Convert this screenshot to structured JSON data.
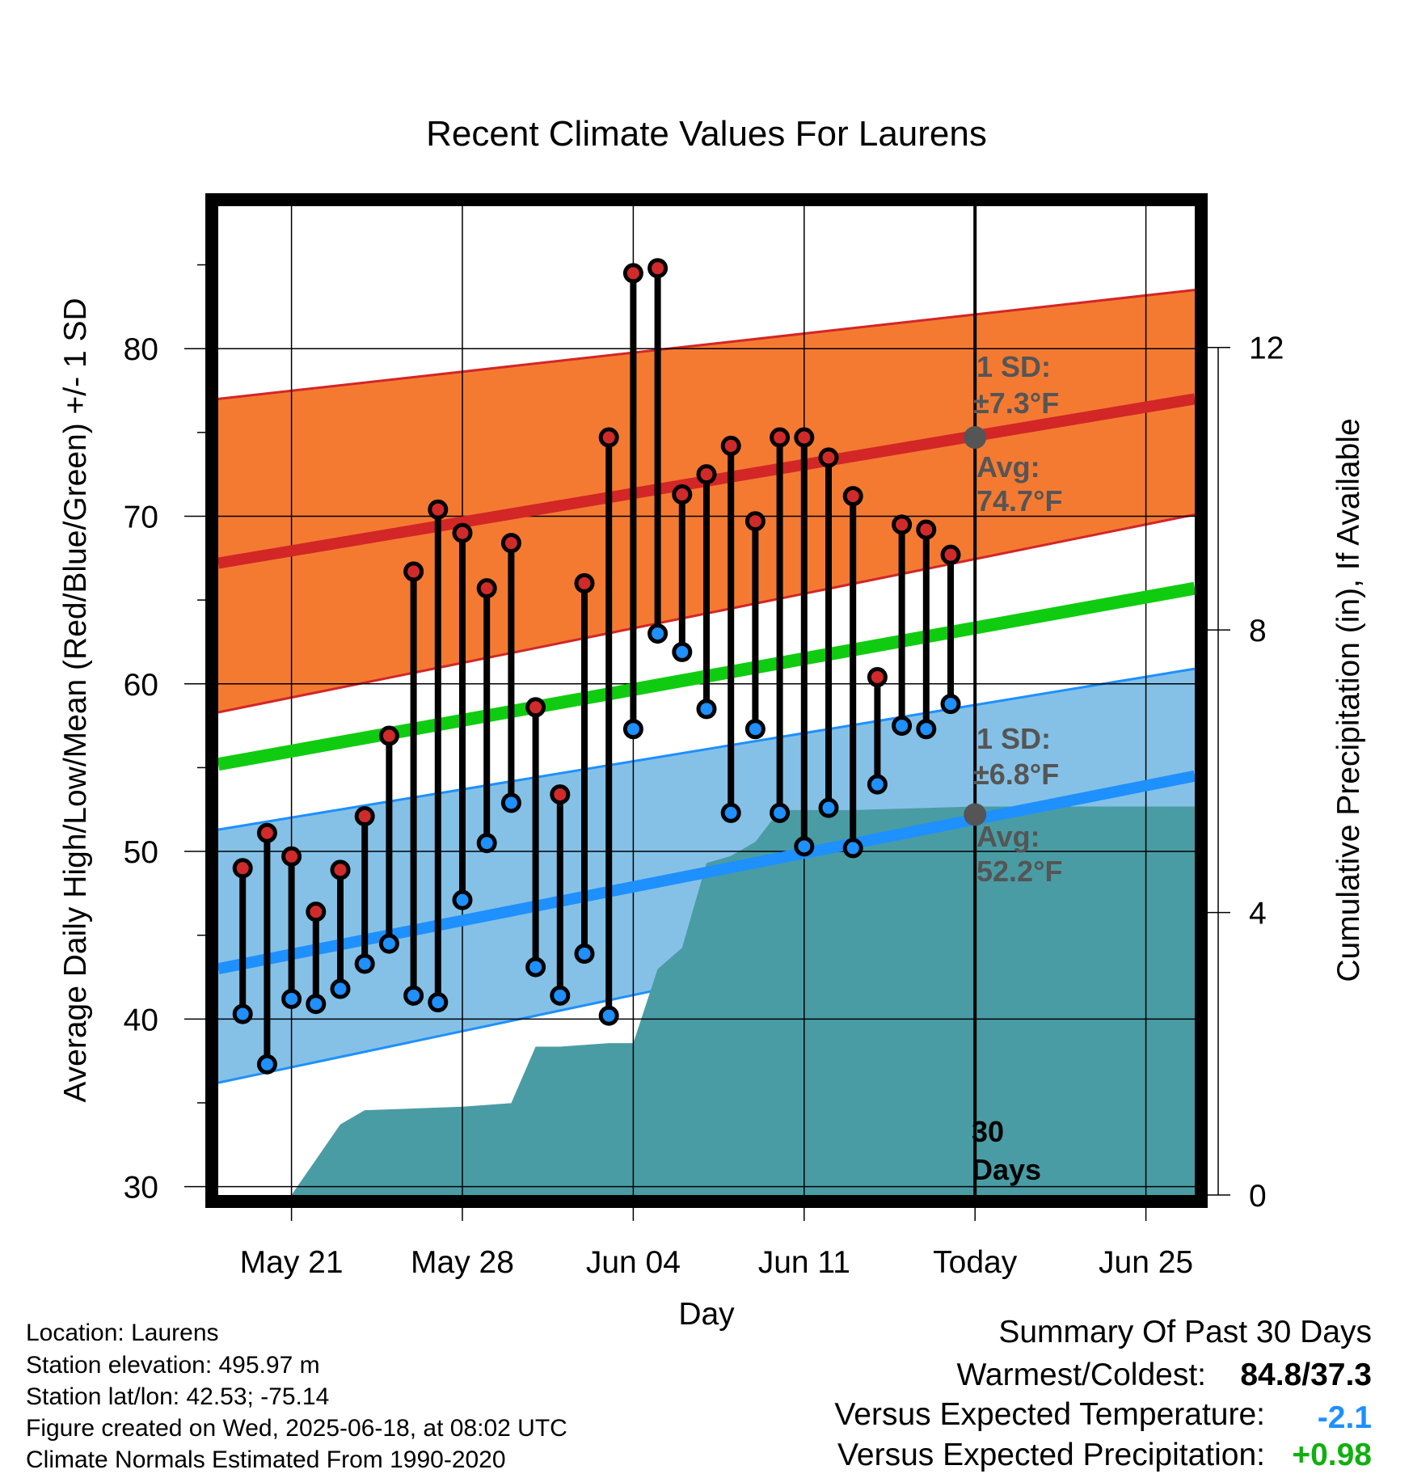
{
  "chart_data": {
    "type": "line",
    "title": "Recent Climate Values For Laurens",
    "xlabel": "Day",
    "ylabel": "Average Daily High/Low/Mean (Red/Blue/Green) +/- 1 SD",
    "y2label": "Cumulative Precipitation (in), If Available",
    "ylim": [
      29.5,
      88.5
    ],
    "y2lim": [
      0,
      14
    ],
    "x_range": [
      "2025-05-18",
      "2025-06-27"
    ],
    "x_ticks": [
      {
        "date": "2025-05-21",
        "label": "May 21"
      },
      {
        "date": "2025-05-28",
        "label": "May 28"
      },
      {
        "date": "2025-06-04",
        "label": "Jun 04"
      },
      {
        "date": "2025-06-11",
        "label": "Jun 11"
      },
      {
        "date": "2025-06-18",
        "label": "Today"
      },
      {
        "date": "2025-06-25",
        "label": "Jun 25"
      }
    ],
    "y_ticks": [
      30,
      40,
      50,
      60,
      70,
      80
    ],
    "y2_ticks": [
      0,
      4,
      8,
      12
    ],
    "today": "2025-06-18",
    "grid": true,
    "observed": {
      "dates": [
        "2025-05-19",
        "2025-05-20",
        "2025-05-21",
        "2025-05-22",
        "2025-05-23",
        "2025-05-24",
        "2025-05-25",
        "2025-05-26",
        "2025-05-27",
        "2025-05-28",
        "2025-05-29",
        "2025-05-30",
        "2025-05-31",
        "2025-06-01",
        "2025-06-02",
        "2025-06-03",
        "2025-06-04",
        "2025-06-05",
        "2025-06-06",
        "2025-06-07",
        "2025-06-08",
        "2025-06-09",
        "2025-06-10",
        "2025-06-11",
        "2025-06-12",
        "2025-06-13",
        "2025-06-14",
        "2025-06-15",
        "2025-06-16",
        "2025-06-17"
      ],
      "highs": [
        49.0,
        51.1,
        49.7,
        46.4,
        48.9,
        52.1,
        56.9,
        66.7,
        70.4,
        69.0,
        65.7,
        68.4,
        58.6,
        53.4,
        66.0,
        74.7,
        84.5,
        84.8,
        71.3,
        72.5,
        74.2,
        69.7,
        74.7,
        74.7,
        73.5,
        71.2,
        60.4,
        69.5,
        69.2,
        67.7
      ],
      "lows": [
        40.3,
        37.3,
        41.2,
        40.9,
        41.8,
        43.3,
        44.5,
        41.4,
        41.0,
        47.1,
        50.5,
        52.9,
        43.1,
        41.4,
        43.9,
        40.2,
        57.3,
        63.0,
        61.9,
        58.5,
        52.3,
        57.3,
        52.3,
        50.3,
        52.6,
        50.2,
        54.0,
        57.5,
        57.3,
        58.8
      ]
    },
    "normals": {
      "dates": [
        "2025-05-18",
        "2025-06-27"
      ],
      "mean_high": [
        67.2,
        77.0
      ],
      "mean_low": [
        43.0,
        54.5
      ],
      "mean": [
        55.2,
        65.7
      ],
      "high_upper": [
        77.0,
        83.5
      ],
      "high_lower": [
        58.3,
        70.1
      ],
      "low_upper": [
        51.3,
        60.9
      ],
      "low_lower": [
        36.2,
        48.5
      ]
    },
    "precip": {
      "dates": [
        "2025-05-18",
        "2025-05-21",
        "2025-05-22",
        "2025-05-23",
        "2025-05-24",
        "2025-05-28",
        "2025-05-30",
        "2025-05-31",
        "2025-06-01",
        "2025-06-03",
        "2025-06-04",
        "2025-06-05",
        "2025-06-06",
        "2025-06-07",
        "2025-06-08",
        "2025-06-09",
        "2025-06-10",
        "2025-06-11",
        "2025-06-12",
        "2025-06-13",
        "2025-06-18",
        "2025-06-27"
      ],
      "cumulative": [
        0.0,
        0.0,
        0.5,
        1.0,
        1.2,
        1.25,
        1.3,
        2.1,
        2.1,
        2.15,
        2.15,
        3.2,
        3.5,
        4.7,
        4.8,
        5.0,
        5.45,
        5.45,
        5.45,
        5.45,
        5.5,
        5.5
      ]
    },
    "annotations": {
      "high_sd_label": "1 SD:",
      "high_sd_value": "±7.3°F",
      "high_avg_label": "Avg:",
      "high_avg_value": "74.7°F",
      "high_avg_point": 74.7,
      "low_sd_label": "1 SD:",
      "low_sd_value": "±6.8°F",
      "low_avg_label": "Avg:",
      "low_avg_value": "52.2°F",
      "low_avg_point": 52.2,
      "days_line1": "30",
      "days_line2": "Days"
    },
    "colors": {
      "high_band": "#f47a32",
      "high_line": "#d32626",
      "low_band": "#85c1e6",
      "low_line": "#1e90ff",
      "mean_line": "#10cc10",
      "precip": "#4a9ca4",
      "high_dot": "#d12a2a",
      "low_dot": "#1e90ff",
      "annotation": "#555555"
    }
  },
  "footer": {
    "location": "Location: Laurens",
    "elevation": "Station elevation: 495.97 m",
    "latlon": "Station lat/lon: 42.53; -75.14",
    "created": "Figure created on Wed, 2025-06-18, at 08:02 UTC",
    "normals": "Climate Normals Estimated From 1990-2020"
  },
  "summary": {
    "title": "Summary Of Past 30 Days",
    "warm_cold_label": "Warmest/Coldest:",
    "warm_cold_value": "84.8/37.3",
    "temp_label": "Versus Expected Temperature:",
    "temp_value": "-2.1",
    "temp_color": "#1e90ff",
    "precip_label": "Versus Expected Precipitation:",
    "precip_value": "+0.98",
    "precip_color": "#10b010"
  }
}
